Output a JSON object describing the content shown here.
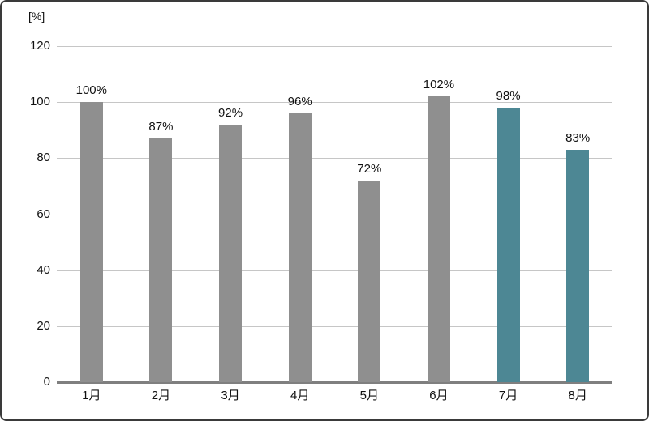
{
  "chart_data": {
    "type": "bar",
    "title": "",
    "xlabel": "",
    "ylabel": "[%]",
    "unit_label": "[%]",
    "categories": [
      "1月",
      "2月",
      "3月",
      "4月",
      "5月",
      "6月",
      "7月",
      "8月"
    ],
    "values": [
      100,
      87,
      92,
      96,
      72,
      102,
      98,
      83
    ],
    "data_labels": [
      "100%",
      "87%",
      "92%",
      "96%",
      "72%",
      "102%",
      "98%",
      "83%"
    ],
    "yticks": [
      0,
      20,
      40,
      60,
      80,
      100,
      120
    ],
    "ylim": [
      0,
      120
    ],
    "grid": true,
    "legend": "none",
    "bar_colors": [
      "#8f8f8f",
      "#8f8f8f",
      "#8f8f8f",
      "#8f8f8f",
      "#8f8f8f",
      "#8f8f8f",
      "#4d8794",
      "#4d8794"
    ]
  },
  "colors": {
    "bar_default": "#8f8f8f",
    "bar_accent": "#4d8794",
    "gridline": "#c6c6c6",
    "axis": "#7f7f7f",
    "text": "#111111",
    "frame_border": "#3a3a3a",
    "background": "#ffffff"
  }
}
